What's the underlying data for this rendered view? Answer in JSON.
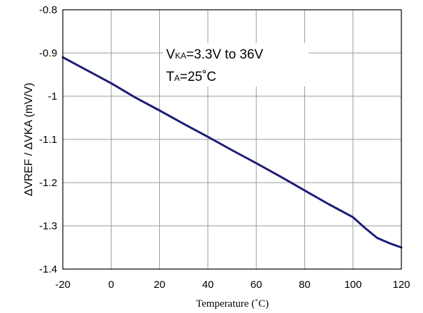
{
  "chart_data": {
    "type": "line",
    "title": "",
    "xlabel": "Temperature (˚C)",
    "ylabel": "ΔVREF / ΔVKA (mV/V)",
    "xlim": [
      -20,
      120
    ],
    "ylim": [
      -1.4,
      -0.8
    ],
    "xticks": [
      -20,
      0,
      20,
      40,
      60,
      80,
      100,
      120
    ],
    "yticks": [
      -0.8,
      -0.9,
      -1,
      -1.1,
      -1.2,
      -1.3,
      -1.4
    ],
    "grid": true,
    "legend": "none",
    "annotations": {
      "line1_main": "V",
      "line1_sub": "KA",
      "line1_rest": "=3.3V to 36V",
      "line2_main": "T",
      "line2_sub": "A",
      "line2_rest": "=25˚C"
    },
    "series": [
      {
        "color": "#1c1c78",
        "x": [
          -20,
          -10,
          0,
          10,
          20,
          30,
          40,
          50,
          60,
          70,
          80,
          90,
          100,
          105,
          110,
          115,
          120
        ],
        "y": [
          -0.91,
          -0.94,
          -0.97,
          -1.003,
          -1.033,
          -1.064,
          -1.094,
          -1.125,
          -1.155,
          -1.186,
          -1.218,
          -1.25,
          -1.28,
          -1.305,
          -1.328,
          -1.34,
          -1.35
        ]
      }
    ]
  }
}
